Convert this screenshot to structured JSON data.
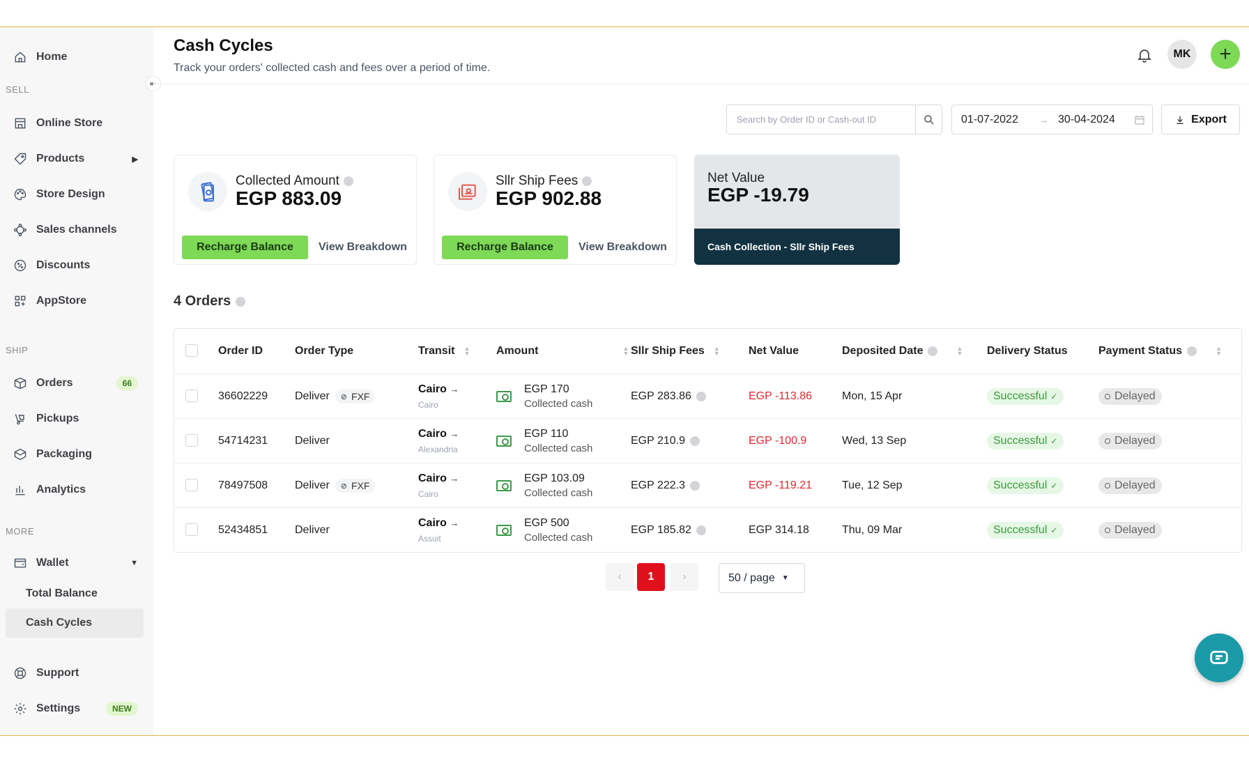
{
  "sidebar": {
    "home": "Home",
    "sell_label": "SELL",
    "online_store": "Online Store",
    "products": "Products",
    "store_design": "Store Design",
    "sales_channels": "Sales channels",
    "discounts": "Discounts",
    "appstore": "AppStore",
    "ship_label": "SHIP",
    "orders": "Orders",
    "orders_badge": "66",
    "pickups": "Pickups",
    "packaging": "Packaging",
    "analytics": "Analytics",
    "more_label": "MORE",
    "wallet": "Wallet",
    "total_balance": "Total Balance",
    "cash_cycles": "Cash Cycles",
    "support": "Support",
    "settings": "Settings",
    "settings_badge": "NEW"
  },
  "header": {
    "title": "Cash Cycles",
    "subtitle": "Track your orders' collected cash and fees over a period of time.",
    "avatar_initials": "MK",
    "plus": "+"
  },
  "toolbar": {
    "search_placeholder": "Search by Order ID or Cash-out ID",
    "date_from": "01-07-2022",
    "date_to": "30-04-2024",
    "export_label": "Export"
  },
  "cards": {
    "collected": {
      "label": "Collected Amount",
      "value": "EGP 883.09",
      "recharge": "Recharge Balance",
      "view": "View Breakdown"
    },
    "fees": {
      "label": "Sllr Ship Fees",
      "value": "EGP 902.88",
      "recharge": "Recharge Balance",
      "view": "View Breakdown"
    },
    "net": {
      "label": "Net Value",
      "value": "EGP -19.79",
      "formula": "Cash Collection - Sllr Ship Fees"
    }
  },
  "orders_count": "4 Orders",
  "table": {
    "headers": {
      "order_id": "Order ID",
      "order_type": "Order Type",
      "transit": "Transit",
      "amount": "Amount",
      "fees": "Sllr Ship Fees",
      "net": "Net Value",
      "deposited": "Deposited Date",
      "delivery": "Delivery Status",
      "payment": "Payment Status"
    },
    "rows": [
      {
        "id": "36602229",
        "type": "Deliver",
        "tag": "FXF",
        "to": "Cairo",
        "from": "Cairo",
        "amount": "EGP 170",
        "amount_sub": "Collected cash",
        "fees": "EGP 283.86",
        "net": "EGP -113.86",
        "date": "Mon, 15 Apr",
        "delivery": "Successful",
        "payment": "Delayed"
      },
      {
        "id": "54714231",
        "type": "Deliver",
        "tag": "",
        "to": "Cairo",
        "from": "Alexandria",
        "amount": "EGP 110",
        "amount_sub": "Collected cash",
        "fees": "EGP 210.9",
        "net": "EGP -100.9",
        "date": "Wed, 13 Sep",
        "delivery": "Successful",
        "payment": "Delayed"
      },
      {
        "id": "78497508",
        "type": "Deliver",
        "tag": "FXF",
        "to": "Cairo",
        "from": "Cairo",
        "amount": "EGP 103.09",
        "amount_sub": "Collected cash",
        "fees": "EGP 222.3",
        "net": "EGP -119.21",
        "date": "Tue, 12 Sep",
        "delivery": "Successful",
        "payment": "Delayed"
      },
      {
        "id": "52434851",
        "type": "Deliver",
        "tag": "",
        "to": "Cairo",
        "from": "Assuit",
        "amount": "EGP 500",
        "amount_sub": "Collected cash",
        "fees": "EGP 185.82",
        "net": "EGP 314.18",
        "date": "Thu, 09 Mar",
        "delivery": "Successful",
        "payment": "Delayed"
      }
    ]
  },
  "pagination": {
    "current": "1",
    "page_size": "50 / page"
  },
  "colors": {
    "accent_green": "#7ed957",
    "dark_teal": "#123241",
    "negative_red": "#e0282e",
    "page_active": "#e0101b"
  }
}
